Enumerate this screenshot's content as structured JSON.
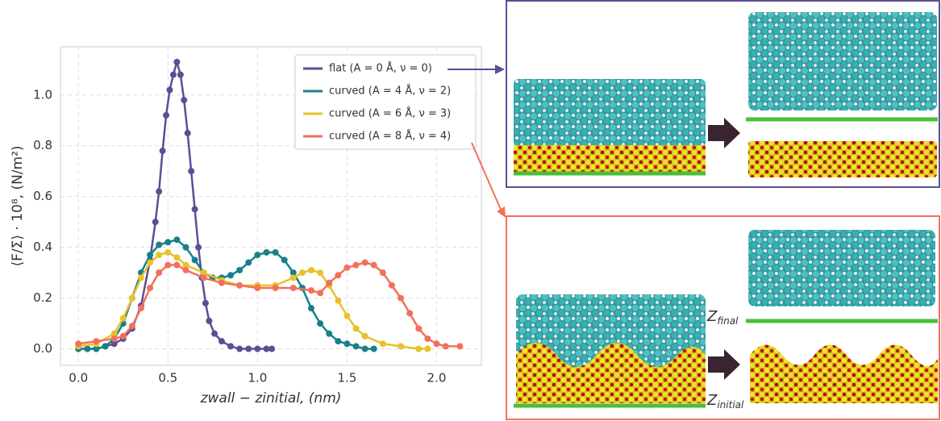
{
  "chart_data": {
    "type": "line",
    "xlabel": "zwall − zinitial, (nm)",
    "ylabel": "⟨F/Σ⟩ · 10⁸, (N/m²)",
    "xlim": [
      -0.1,
      2.25
    ],
    "ylim": [
      -0.065,
      1.19
    ],
    "xticks": [
      {
        "value": 0,
        "label": "0.0"
      },
      0.5,
      {
        "value": 1,
        "label": "1.0"
      },
      1.5,
      {
        "value": 2,
        "label": "2.0"
      }
    ],
    "yticks": [
      {
        "value": 0,
        "label": "0.0"
      },
      0.2,
      0.4,
      0.6,
      0.8,
      {
        "value": 1,
        "label": "1.0"
      }
    ],
    "grid": true,
    "legend": "upper right",
    "series": [
      {
        "name": "flat (A = 0 Å, ν = 0)",
        "color": "#5b4f94",
        "x": [
          0,
          0.05,
          0.1,
          0.15,
          0.2,
          0.25,
          0.3,
          0.35,
          0.4,
          0.43,
          0.45,
          0.47,
          0.49,
          0.51,
          0.53,
          0.55,
          0.57,
          0.59,
          0.61,
          0.63,
          0.65,
          0.67,
          0.69,
          0.71,
          0.73,
          0.76,
          0.8,
          0.85,
          0.9,
          0.95,
          1.0,
          1.05,
          1.08
        ],
        "values": [
          0,
          0,
          0,
          0.01,
          0.02,
          0.04,
          0.08,
          0.17,
          0.35,
          0.5,
          0.62,
          0.78,
          0.92,
          1.02,
          1.08,
          1.13,
          1.08,
          0.98,
          0.85,
          0.7,
          0.55,
          0.4,
          0.28,
          0.18,
          0.11,
          0.06,
          0.03,
          0.01,
          0,
          0,
          0,
          0,
          0
        ]
      },
      {
        "name": "curved (A = 4 Å, ν = 2)",
        "color": "#17808a",
        "x": [
          0,
          0.05,
          0.1,
          0.15,
          0.2,
          0.25,
          0.3,
          0.35,
          0.4,
          0.45,
          0.5,
          0.55,
          0.6,
          0.65,
          0.7,
          0.75,
          0.8,
          0.85,
          0.9,
          0.95,
          1.0,
          1.05,
          1.1,
          1.15,
          1.2,
          1.25,
          1.3,
          1.35,
          1.4,
          1.45,
          1.5,
          1.55,
          1.6,
          1.65
        ],
        "values": [
          0,
          0,
          0,
          0.01,
          0.04,
          0.1,
          0.2,
          0.3,
          0.37,
          0.41,
          0.42,
          0.43,
          0.4,
          0.35,
          0.3,
          0.28,
          0.28,
          0.29,
          0.31,
          0.34,
          0.37,
          0.38,
          0.38,
          0.35,
          0.3,
          0.24,
          0.16,
          0.1,
          0.06,
          0.03,
          0.02,
          0.01,
          0,
          0
        ]
      },
      {
        "name": "curved (A = 6 Å, ν = 3)",
        "color": "#e8c22a",
        "x": [
          0,
          0.1,
          0.2,
          0.25,
          0.3,
          0.35,
          0.4,
          0.45,
          0.5,
          0.55,
          0.6,
          0.7,
          0.8,
          0.9,
          1.0,
          1.1,
          1.2,
          1.25,
          1.3,
          1.35,
          1.4,
          1.45,
          1.5,
          1.55,
          1.6,
          1.7,
          1.8,
          1.9,
          1.95
        ],
        "values": [
          0.01,
          0.02,
          0.06,
          0.12,
          0.2,
          0.28,
          0.34,
          0.37,
          0.38,
          0.36,
          0.33,
          0.3,
          0.27,
          0.25,
          0.25,
          0.25,
          0.28,
          0.3,
          0.31,
          0.3,
          0.25,
          0.19,
          0.13,
          0.08,
          0.05,
          0.02,
          0.01,
          0,
          0
        ]
      },
      {
        "name": "curved (A = 8 Å, ν = 4)",
        "color": "#f2705c",
        "x": [
          0,
          0.1,
          0.2,
          0.25,
          0.3,
          0.35,
          0.4,
          0.45,
          0.5,
          0.55,
          0.6,
          0.7,
          0.8,
          0.9,
          1.0,
          1.1,
          1.2,
          1.3,
          1.35,
          1.4,
          1.45,
          1.5,
          1.55,
          1.6,
          1.65,
          1.7,
          1.75,
          1.8,
          1.85,
          1.9,
          1.95,
          2.0,
          2.05,
          2.13
        ],
        "values": [
          0.02,
          0.03,
          0.04,
          0.05,
          0.09,
          0.16,
          0.24,
          0.3,
          0.33,
          0.33,
          0.31,
          0.28,
          0.26,
          0.25,
          0.24,
          0.24,
          0.24,
          0.23,
          0.22,
          0.26,
          0.29,
          0.32,
          0.33,
          0.34,
          0.33,
          0.3,
          0.25,
          0.2,
          0.14,
          0.08,
          0.04,
          0.02,
          0.01,
          0.01
        ]
      }
    ]
  },
  "illustration": {
    "z_final": {
      "symbol": "Z",
      "subscript": "final"
    },
    "z_initial": {
      "symbol": "Z",
      "subscript": "initial"
    }
  }
}
